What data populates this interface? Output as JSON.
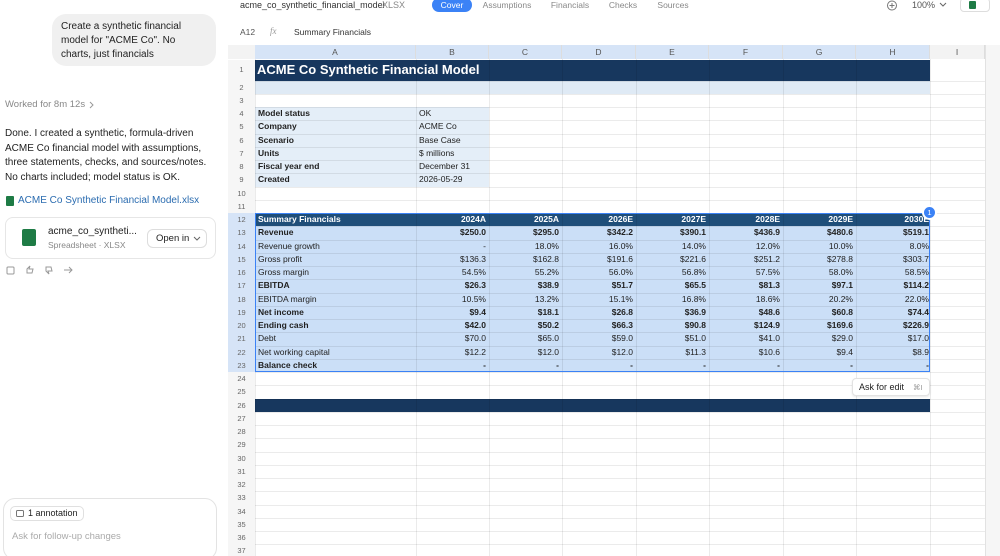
{
  "left_panel": {
    "user_message": "Create a synthetic financial model for \"ACME Co\". No charts, just financials",
    "worked_for": "Worked for 8m 12s",
    "response": "Done. I created a synthetic, formula-driven ACME Co financial model with assumptions, three statements, checks, and sources/notes. No charts included; model status is OK.",
    "file_link": "ACME Co Synthetic Financial Model.xlsx",
    "file_card": {
      "name": "acme_co_syntheti...",
      "type": "Spreadsheet · XLSX",
      "button": "Open in"
    },
    "annotation": "1 annotation",
    "input_placeholder": "Ask for follow-up changes"
  },
  "toolbar": {
    "file_name": "acme_co_synthetic_financial_model",
    "file_ext": "XLSX",
    "tabs": [
      "Cover",
      "Assumptions",
      "Financials",
      "Checks",
      "Sources"
    ],
    "zoom": "100%"
  },
  "formula_bar": {
    "cell": "A12",
    "fx": "fx",
    "content": "Summary Financials"
  },
  "sheet": {
    "columns": [
      "A",
      "B",
      "C",
      "D",
      "E",
      "F",
      "G",
      "H",
      "I"
    ],
    "row_numbers": [
      1,
      2,
      3,
      4,
      5,
      6,
      7,
      8,
      9,
      10,
      11,
      12,
      13,
      14,
      15,
      16,
      17,
      18,
      19,
      20,
      21,
      22,
      23,
      24,
      25,
      26,
      27,
      28,
      29,
      30,
      31,
      32,
      33,
      34,
      35,
      36,
      37
    ],
    "title": "ACME Co Synthetic Financial Model",
    "info": [
      {
        "label": "Model status",
        "value": "OK"
      },
      {
        "label": "Company",
        "value": "ACME Co"
      },
      {
        "label": "Scenario",
        "value": "Base Case"
      },
      {
        "label": "Units",
        "value": "$ millions"
      },
      {
        "label": "Fiscal year end",
        "value": "December 31"
      },
      {
        "label": "Created",
        "value": "2026-05-29"
      }
    ],
    "table": {
      "header": [
        "Summary Financials",
        "2024A",
        "2025A",
        "2026E",
        "2027E",
        "2028E",
        "2029E",
        "2030E"
      ],
      "rows": [
        {
          "bold": true,
          "cells": [
            "Revenue",
            "$250.0",
            "$295.0",
            "$342.2",
            "$390.1",
            "$436.9",
            "$480.6",
            "$519.1"
          ]
        },
        {
          "bold": false,
          "cells": [
            "Revenue growth",
            "-",
            "18.0%",
            "16.0%",
            "14.0%",
            "12.0%",
            "10.0%",
            "8.0%"
          ]
        },
        {
          "bold": false,
          "cells": [
            "Gross profit",
            "$136.3",
            "$162.8",
            "$191.6",
            "$221.6",
            "$251.2",
            "$278.8",
            "$303.7"
          ]
        },
        {
          "bold": false,
          "cells": [
            "Gross margin",
            "54.5%",
            "55.2%",
            "56.0%",
            "56.8%",
            "57.5%",
            "58.0%",
            "58.5%"
          ]
        },
        {
          "bold": true,
          "cells": [
            "EBITDA",
            "$26.3",
            "$38.9",
            "$51.7",
            "$65.5",
            "$81.3",
            "$97.1",
            "$114.2"
          ]
        },
        {
          "bold": false,
          "cells": [
            "EBITDA margin",
            "10.5%",
            "13.2%",
            "15.1%",
            "16.8%",
            "18.6%",
            "20.2%",
            "22.0%"
          ]
        },
        {
          "bold": true,
          "cells": [
            "Net income",
            "$9.4",
            "$18.1",
            "$26.8",
            "$36.9",
            "$48.6",
            "$60.8",
            "$74.4"
          ]
        },
        {
          "bold": true,
          "cells": [
            "Ending cash",
            "$42.0",
            "$50.2",
            "$66.3",
            "$90.8",
            "$124.9",
            "$169.6",
            "$226.9"
          ]
        },
        {
          "bold": false,
          "cells": [
            "Debt",
            "$70.0",
            "$65.0",
            "$59.0",
            "$51.0",
            "$41.0",
            "$29.0",
            "$17.0"
          ]
        },
        {
          "bold": false,
          "cells": [
            "Net working capital",
            "$12.2",
            "$12.0",
            "$12.0",
            "$11.3",
            "$10.6",
            "$9.4",
            "$8.9"
          ]
        },
        {
          "bold": true,
          "cells": [
            "Balance check",
            "-",
            "-",
            "-",
            "-",
            "-",
            "-",
            "-"
          ]
        }
      ]
    },
    "ask_for_edit": "Ask for edit",
    "shortcut": "⌘I",
    "badge": "1"
  }
}
